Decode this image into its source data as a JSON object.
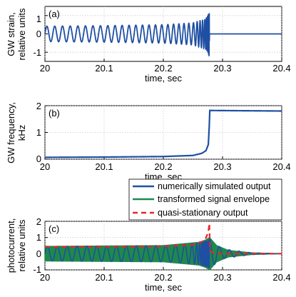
{
  "chart_data": [
    {
      "type": "line",
      "panel_label": "(a)",
      "xlabel": "time, sec",
      "ylabel": [
        "GW strain,",
        "relative units"
      ],
      "xlim": [
        20,
        20.4
      ],
      "ylim": [
        -1.5,
        1.5
      ],
      "xticks": [
        "20",
        "20.1",
        "20.2",
        "20.3",
        "20.4"
      ],
      "yticks": [
        "1",
        "0",
        "-1"
      ],
      "grid": "dotted",
      "series": [
        {
          "color": "#1f4fa3",
          "description_points": {
            "t": [
              20.0,
              20.1,
              20.2,
              20.25,
              20.27,
              20.275,
              20.2775,
              20.278,
              20.4
            ],
            "envelope": [
              0.42,
              0.45,
              0.5,
              0.6,
              0.8,
              1.0,
              1.25,
              0.0,
              0.0
            ],
            "freq_hz": [
              75,
              80,
              95,
              130,
              280,
              600,
              1500,
              1800,
              1800
            ]
          }
        }
      ]
    },
    {
      "type": "line",
      "panel_label": "(b)",
      "xlabel": "time, sec",
      "ylabel": [
        "GW frequency,",
        "kHz"
      ],
      "xlim": [
        20,
        20.4
      ],
      "ylim": [
        0,
        2
      ],
      "xticks": [
        "20",
        "20.1",
        "20.2",
        "20.3",
        "20.4"
      ],
      "yticks": [
        "2",
        "1",
        "0"
      ],
      "grid": "dotted",
      "series": [
        {
          "color": "#1f4fa3",
          "x": [
            20.0,
            20.1,
            20.2,
            20.25,
            20.265,
            20.272,
            20.276,
            20.2775,
            20.2785,
            20.4
          ],
          "y": [
            0.07,
            0.08,
            0.1,
            0.14,
            0.22,
            0.32,
            0.55,
            1.2,
            1.82,
            1.8
          ]
        }
      ]
    },
    {
      "type": "line",
      "panel_label": "(c)",
      "xlabel": "time, sec",
      "ylabel": [
        "photocurrent,",
        "relative units"
      ],
      "xlim": [
        20,
        20.4
      ],
      "ylim": [
        -1,
        2
      ],
      "xticks": [
        "20",
        "20.1",
        "20.2",
        "20.3",
        "20.4"
      ],
      "yticks": [
        "2",
        "1",
        "0",
        "-1"
      ],
      "grid": "dotted",
      "legend": {
        "placement": "above-top-right",
        "entries": [
          {
            "label": "numerically simulated output",
            "color": "#1f4fa3",
            "style": "solid"
          },
          {
            "label": "transformed signal envelope",
            "color": "#1e8a4a",
            "style": "solid"
          },
          {
            "label": "quasi-stationary output",
            "color": "#e8262a",
            "style": "dashed"
          }
        ]
      },
      "series": [
        {
          "name": "numerically simulated output",
          "color": "#1f4fa3",
          "description_points": {
            "t": [
              20.0,
              20.2,
              20.26,
              20.278,
              20.3,
              20.35,
              20.4
            ],
            "center": [
              0.0,
              0.0,
              0.0,
              0.0,
              0.0,
              0.0,
              0.0
            ],
            "amplitude": [
              0.45,
              0.5,
              0.65,
              0.9,
              0.3,
              0.05,
              0.0
            ]
          }
        },
        {
          "name": "transformed signal envelope",
          "color": "#1e8a4a",
          "x": [
            20.0,
            20.2,
            20.26,
            20.272,
            20.278,
            20.29,
            20.31,
            20.35,
            20.4
          ],
          "upper": [
            0.45,
            0.5,
            0.7,
            0.85,
            1.0,
            0.5,
            0.2,
            0.05,
            0.0
          ],
          "lower": [
            -0.45,
            -0.5,
            -0.7,
            -0.85,
            -1.0,
            -0.5,
            -0.2,
            -0.05,
            0.0
          ]
        },
        {
          "name": "quasi-stationary output",
          "color": "#e8262a",
          "x": [
            20.0,
            20.1,
            20.2,
            20.25,
            20.27,
            20.276,
            20.278,
            20.2785,
            20.285,
            20.3,
            20.4
          ],
          "y": [
            0.42,
            0.43,
            0.46,
            0.55,
            0.8,
            1.35,
            1.95,
            0.2,
            0.02,
            0.0,
            0.0
          ]
        }
      ]
    }
  ]
}
